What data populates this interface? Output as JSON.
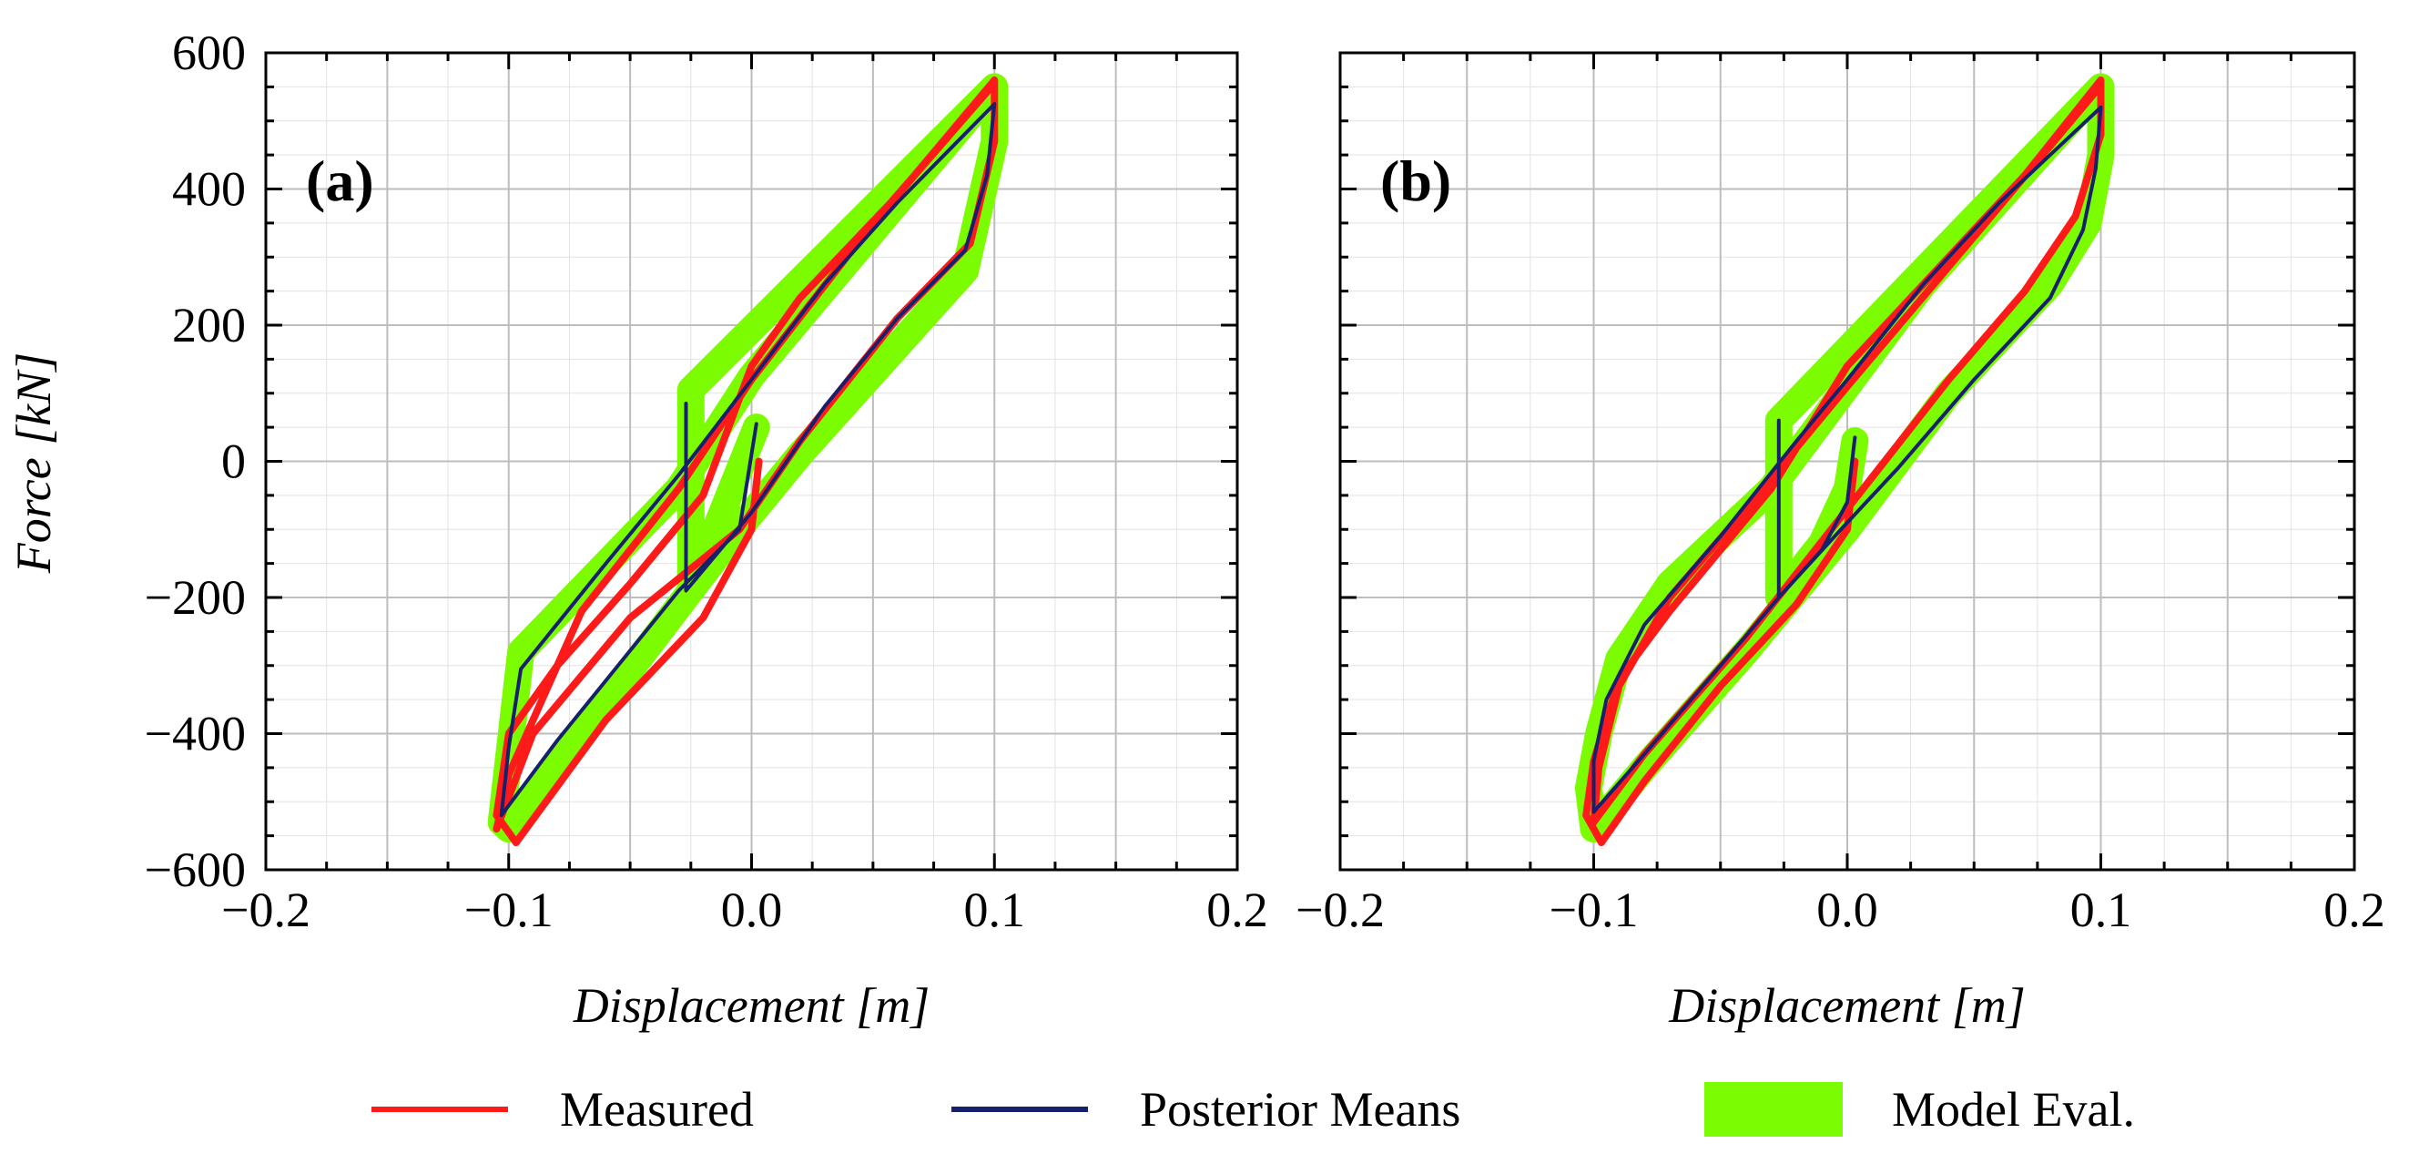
{
  "y_axis_label": "Force [kN]",
  "legend": [
    {
      "label": "Measured",
      "color": "#ff1a1a",
      "kind": "line"
    },
    {
      "label": "Posterior Means",
      "color": "#17206b",
      "kind": "line"
    },
    {
      "label": "Model Eval.",
      "color": "#7cfc00",
      "kind": "patch"
    }
  ],
  "colors": {
    "measured": "#ff1a1a",
    "posterior": "#17206b",
    "model": "#7cfc00",
    "grid_major": "#bdbdbd",
    "grid_minor": "#e2e2e2"
  },
  "chart_data": [
    {
      "type": "line",
      "panel_label": "(a)",
      "xlabel": "Displacement [m]",
      "ylabel": "Force [kN]",
      "xlim": [
        -0.2,
        0.2
      ],
      "ylim": [
        -600,
        600
      ],
      "xticks": [
        -0.2,
        -0.1,
        0.0,
        0.1,
        0.2
      ],
      "xtick_labels": [
        "−0.2",
        "−0.1",
        "0.0",
        "0.1",
        "0.2"
      ],
      "yticks": [
        -600,
        -400,
        -200,
        0,
        200,
        400,
        600
      ],
      "ytick_labels": [
        "−600",
        "−400",
        "−200",
        "0",
        "200",
        "400",
        "600"
      ],
      "grid": true,
      "series": [
        {
          "name": "Model Eval.",
          "band_width": 30,
          "points": [
            [
              0.1,
              550
            ],
            [
              0.1,
              470
            ],
            [
              0.088,
              280
            ],
            [
              0.02,
              10
            ],
            [
              -0.01,
              -120
            ],
            [
              -0.1,
              -540
            ],
            [
              -0.103,
              -530
            ],
            [
              -0.095,
              -280
            ],
            [
              -0.03,
              -40
            ],
            [
              0.0,
              125
            ],
            [
              0.1,
              550
            ],
            [
              -0.025,
              105
            ],
            [
              -0.025,
              -190
            ],
            [
              0.002,
              50
            ]
          ]
        },
        {
          "name": "Measured",
          "points": [
            [
              0.003,
              0
            ],
            [
              0.0,
              -100
            ],
            [
              -0.02,
              -230
            ],
            [
              -0.06,
              -380
            ],
            [
              -0.097,
              -560
            ],
            [
              -0.105,
              -520
            ],
            [
              -0.1,
              -400
            ],
            [
              -0.08,
              -300
            ],
            [
              -0.05,
              -180
            ],
            [
              -0.02,
              -50
            ],
            [
              0.0,
              140
            ],
            [
              0.02,
              240
            ],
            [
              0.06,
              390
            ],
            [
              0.1,
              560
            ],
            [
              0.1,
              470
            ],
            [
              0.09,
              320
            ],
            [
              0.06,
              210
            ],
            [
              0.02,
              30
            ],
            [
              -0.005,
              -100
            ],
            [
              -0.05,
              -230
            ],
            [
              -0.09,
              -400
            ],
            [
              -0.105,
              -540
            ],
            [
              -0.1,
              -460
            ],
            [
              -0.07,
              -220
            ],
            [
              -0.03,
              -40
            ],
            [
              0.0,
              120
            ],
            [
              0.05,
              350
            ],
            [
              0.1,
              555
            ]
          ]
        },
        {
          "name": "Posterior Means",
          "points": [
            [
              0.002,
              55
            ],
            [
              -0.005,
              -100
            ],
            [
              -0.03,
              -190
            ],
            [
              -0.055,
              -300
            ],
            [
              -0.08,
              -410
            ],
            [
              -0.103,
              -520
            ],
            [
              -0.1,
              -420
            ],
            [
              -0.095,
              -305
            ],
            [
              -0.06,
              -150
            ],
            [
              -0.03,
              -20
            ],
            [
              0.0,
              120
            ],
            [
              0.03,
              260
            ],
            [
              0.06,
              380
            ],
            [
              0.1,
              525
            ],
            [
              0.097,
              420
            ],
            [
              0.088,
              310
            ],
            [
              0.06,
              210
            ],
            [
              0.03,
              80
            ],
            [
              0.0,
              -75
            ],
            [
              -0.027,
              -190
            ],
            [
              -0.027,
              85
            ]
          ]
        }
      ]
    },
    {
      "type": "line",
      "panel_label": "(b)",
      "xlabel": "Displacement [m]",
      "ylabel": "",
      "xlim": [
        -0.2,
        0.2
      ],
      "ylim": [
        -600,
        600
      ],
      "xticks": [
        -0.2,
        -0.1,
        0.0,
        0.1,
        0.2
      ],
      "xtick_labels": [
        "−0.2",
        "−0.1",
        "0.0",
        "0.1",
        "0.2"
      ],
      "yticks": [
        -600,
        -400,
        -200,
        0,
        200,
        400,
        600
      ],
      "ytick_labels": [],
      "grid": true,
      "series": [
        {
          "name": "Model Eval.",
          "band_width": 30,
          "points": [
            [
              0.1,
              550
            ],
            [
              0.1,
              450
            ],
            [
              0.095,
              350
            ],
            [
              0.08,
              260
            ],
            [
              0.04,
              100
            ],
            [
              0.0,
              -100
            ],
            [
              -0.04,
              -280
            ],
            [
              -0.08,
              -450
            ],
            [
              -0.1,
              -540
            ],
            [
              -0.102,
              -480
            ],
            [
              -0.098,
              -400
            ],
            [
              -0.09,
              -290
            ],
            [
              -0.07,
              -180
            ],
            [
              -0.03,
              -40
            ],
            [
              0.0,
              110
            ],
            [
              0.03,
              260
            ],
            [
              0.1,
              550
            ],
            [
              -0.027,
              60
            ],
            [
              -0.027,
              -200
            ],
            [
              -0.01,
              -120
            ],
            [
              0.0,
              -40
            ],
            [
              0.003,
              30
            ]
          ]
        },
        {
          "name": "Measured",
          "points": [
            [
              0.003,
              0
            ],
            [
              0.0,
              -100
            ],
            [
              -0.02,
              -210
            ],
            [
              -0.05,
              -330
            ],
            [
              -0.08,
              -470
            ],
            [
              -0.097,
              -560
            ],
            [
              -0.103,
              -520
            ],
            [
              -0.1,
              -440
            ],
            [
              -0.09,
              -320
            ],
            [
              -0.07,
              -220
            ],
            [
              -0.03,
              -40
            ],
            [
              0.0,
              140
            ],
            [
              0.03,
              260
            ],
            [
              0.07,
              420
            ],
            [
              0.1,
              560
            ],
            [
              0.1,
              480
            ],
            [
              0.09,
              360
            ],
            [
              0.07,
              250
            ],
            [
              0.04,
              120
            ],
            [
              0.0,
              -70
            ],
            [
              -0.04,
              -260
            ],
            [
              -0.08,
              -430
            ],
            [
              -0.1,
              -530
            ],
            [
              -0.098,
              -450
            ],
            [
              -0.09,
              -330
            ],
            [
              -0.07,
              -200
            ],
            [
              -0.04,
              -70
            ],
            [
              0.0,
              110
            ],
            [
              0.05,
              330
            ],
            [
              0.1,
              552
            ]
          ]
        },
        {
          "name": "Posterior Means",
          "points": [
            [
              0.003,
              35
            ],
            [
              0.0,
              -60
            ],
            [
              -0.01,
              -130
            ],
            [
              -0.027,
              -200
            ],
            [
              -0.05,
              -300
            ],
            [
              -0.08,
              -430
            ],
            [
              -0.1,
              -515
            ],
            [
              -0.1,
              -440
            ],
            [
              -0.095,
              -350
            ],
            [
              -0.08,
              -240
            ],
            [
              -0.05,
              -110
            ],
            [
              -0.02,
              30
            ],
            [
              0.0,
              120
            ],
            [
              0.03,
              260
            ],
            [
              0.06,
              380
            ],
            [
              0.1,
              520
            ],
            [
              0.098,
              430
            ],
            [
              0.093,
              340
            ],
            [
              0.08,
              240
            ],
            [
              0.05,
              120
            ],
            [
              0.02,
              -10
            ],
            [
              0.0,
              -90
            ],
            [
              -0.027,
              -200
            ],
            [
              -0.027,
              60
            ]
          ]
        }
      ]
    }
  ]
}
